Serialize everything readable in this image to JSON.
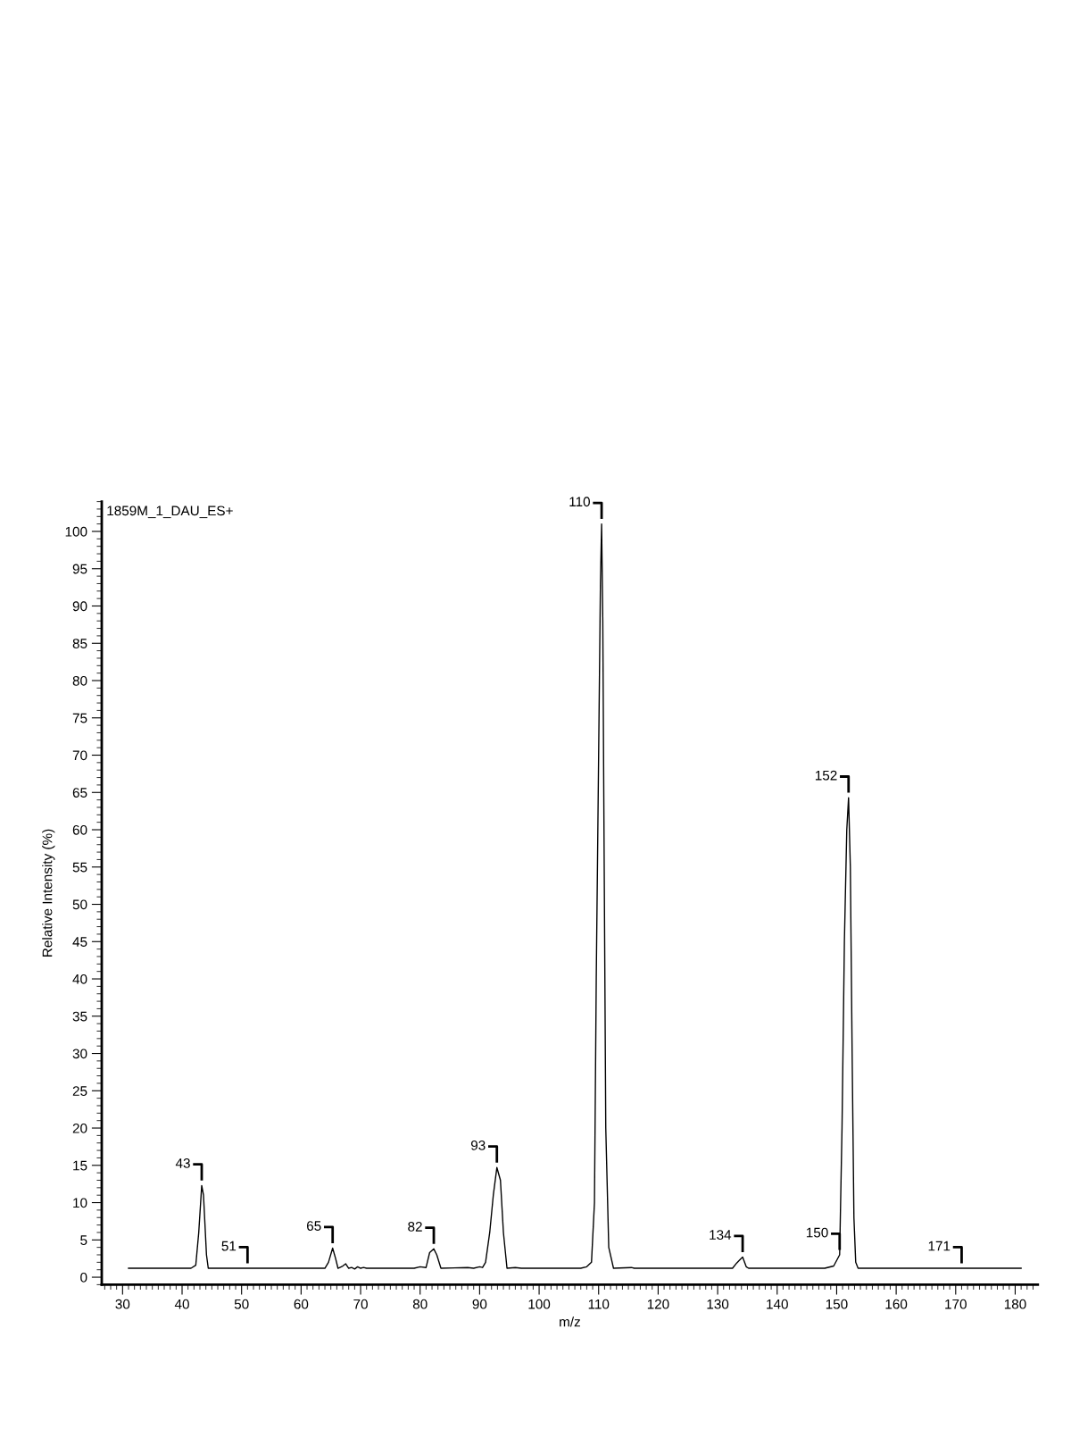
{
  "chart_data": {
    "type": "line",
    "title": "1859M_1_DAU_ES+",
    "xlabel": "m/z",
    "ylabel": "Relative Intensity (%)",
    "x": [
      31,
      41.5,
      42.3,
      42.8,
      43.3,
      43.6,
      44.1,
      44.4,
      64,
      64.6,
      65.3,
      65.8,
      66.2,
      67,
      67.5,
      68,
      68.5,
      69,
      69.5,
      70,
      70.5,
      71,
      79,
      80,
      81,
      81.6,
      82.3,
      82.8,
      83.5,
      88,
      89,
      90,
      90.5,
      91,
      91.7,
      92.3,
      92.9,
      93.5,
      94,
      94.6,
      96,
      97,
      107,
      108,
      108.8,
      109.3,
      109.6,
      110,
      110.3,
      110.5,
      110.7,
      110.9,
      111.2,
      111.7,
      112.5,
      115.5,
      116,
      132.5,
      133.2,
      133.7,
      134.2,
      134.8,
      135.2,
      148,
      149.5,
      150.5,
      150.9,
      151.3,
      151.7,
      152,
      152.3,
      152.6,
      152.9,
      153.2,
      153.6,
      181
    ],
    "series": [
      {
        "color": "#000000",
        "values": [
          1.2,
          1.2,
          1.6,
          6,
          12.3,
          11,
          3,
          1.2,
          1.2,
          2,
          3.9,
          2.5,
          1.2,
          1.5,
          1.8,
          1.2,
          1.3,
          1.1,
          1.4,
          1.2,
          1.3,
          1.2,
          1.2,
          1.4,
          1.3,
          3.3,
          3.8,
          3,
          1.2,
          1.3,
          1.2,
          1.4,
          1.3,
          2,
          6,
          11,
          14.7,
          13,
          6,
          1.2,
          1.3,
          1.2,
          1.2,
          1.4,
          2,
          10,
          40,
          70,
          93,
          101,
          88,
          60,
          20,
          4,
          1.2,
          1.3,
          1.2,
          1.2,
          1.9,
          2.3,
          2.7,
          1.4,
          1.2,
          1.2,
          1.5,
          3,
          20,
          45,
          60,
          64.3,
          55,
          30,
          8,
          2,
          1.2,
          1.2
        ]
      }
    ],
    "xlim": [
      26.5,
      183.8
    ],
    "ylim": [
      -1,
      104
    ],
    "xticks": [
      30,
      40,
      50,
      60,
      70,
      80,
      90,
      100,
      110,
      120,
      130,
      140,
      150,
      160,
      170,
      180
    ],
    "yticks": [
      0,
      5,
      10,
      15,
      20,
      25,
      30,
      35,
      40,
      45,
      50,
      55,
      60,
      65,
      70,
      75,
      80,
      85,
      90,
      95,
      100
    ],
    "grid": false,
    "marker": "none",
    "line_style": "solid",
    "annotations": [
      {
        "text": "43",
        "x": 43.3,
        "y": 12.3
      },
      {
        "text": "51",
        "x": 51,
        "y": 1.2
      },
      {
        "text": "65",
        "x": 65.3,
        "y": 3.9
      },
      {
        "text": "82",
        "x": 82.3,
        "y": 3.8
      },
      {
        "text": "93",
        "x": 92.9,
        "y": 14.7
      },
      {
        "text": "110",
        "x": 110.5,
        "y": 101
      },
      {
        "text": "134",
        "x": 134.2,
        "y": 2.7
      },
      {
        "text": "150",
        "x": 150.5,
        "y": 3
      },
      {
        "text": "152",
        "x": 152,
        "y": 64.3
      },
      {
        "text": "171",
        "x": 171,
        "y": 1.2
      }
    ]
  }
}
